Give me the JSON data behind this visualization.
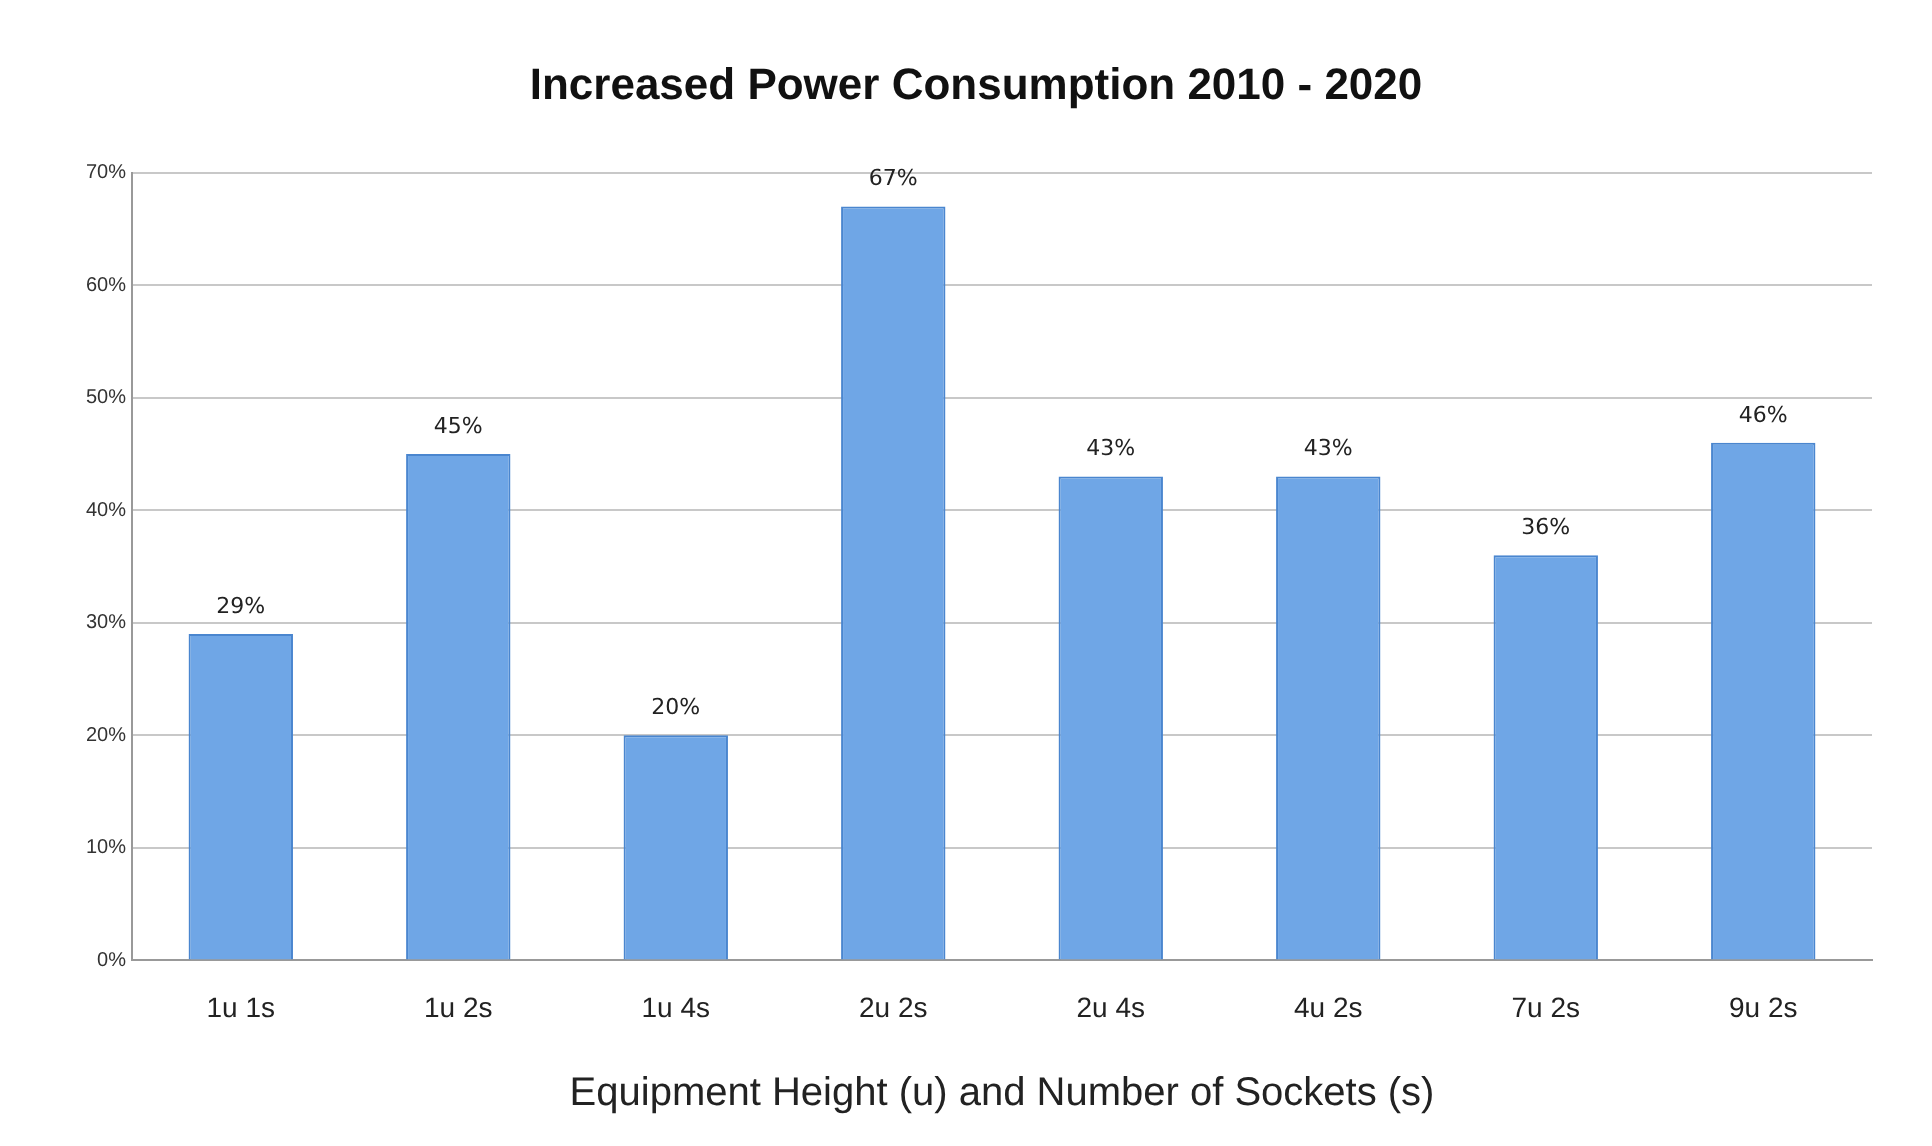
{
  "chart_data": {
    "type": "bar",
    "title": "Increased Power Consumption 2010 - 2020",
    "xlabel": "Equipment Height (u) and Number of Sockets (s)",
    "categories": [
      "1u 1s",
      "1u 2s",
      "1u 4s",
      "2u 2s",
      "2u 4s",
      "4u 2s",
      "7u 2s",
      "9u 2s"
    ],
    "values": [
      29,
      45,
      20,
      67,
      43,
      43,
      36,
      46
    ],
    "value_labels": [
      "29%",
      "45%",
      "20%",
      "67%",
      "43%",
      "43%",
      "36%",
      "46%"
    ],
    "color": "#6fa6e6",
    "ylim": [
      0,
      70
    ],
    "yticks": [
      {
        "value": 0,
        "label": "0%"
      },
      {
        "value": 10,
        "label": "10%"
      },
      {
        "value": 20,
        "label": "20%"
      },
      {
        "value": 30,
        "label": "30%"
      },
      {
        "value": 40,
        "label": "40%"
      },
      {
        "value": 50,
        "label": "50%"
      },
      {
        "value": 60,
        "label": "60%"
      },
      {
        "value": 70,
        "label": "70%"
      }
    ],
    "grid": "y",
    "legend": false
  }
}
